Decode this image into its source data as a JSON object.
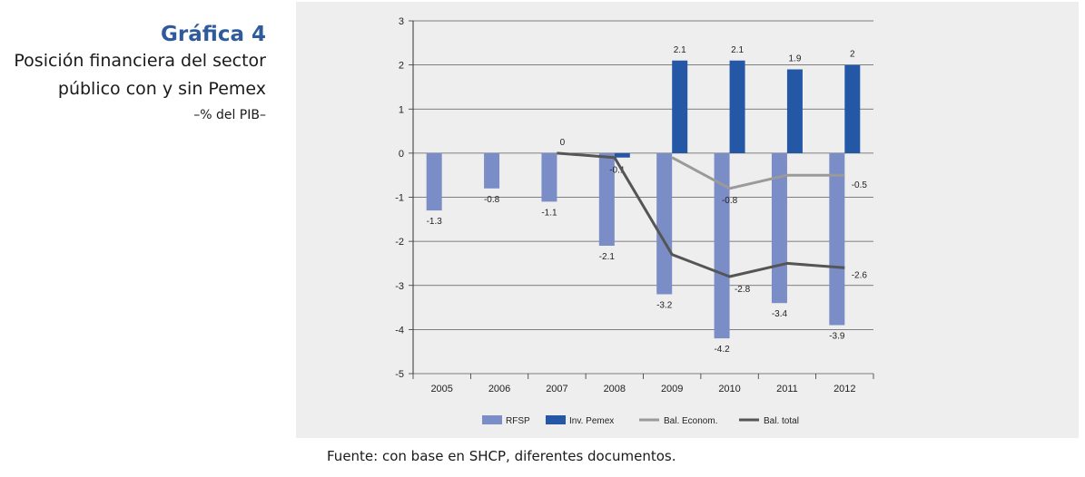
{
  "header": {
    "number": "Gráfica 4",
    "title_line1": "Posición financiera del sector",
    "title_line2": "público con y sin Pemex",
    "subtitle": "–% del PIB–"
  },
  "source": "Fuente: con base en SHCP, diferentes documentos.",
  "colors": {
    "rfsp": "#7b8dc7",
    "inv_pemex": "#2458a6",
    "bal_econom": "#9a9a9a",
    "bal_total": "#555555",
    "panel": "#eeeeee",
    "title": "#2f5b9c"
  },
  "chart_data": {
    "type": "bar",
    "title": "Posición financiera del sector público con y sin Pemex",
    "ylabel": "% del PIB",
    "xlabel": "",
    "ylim": [
      -5,
      3
    ],
    "yticks": [
      3,
      2,
      1,
      0,
      -1,
      -2,
      -3,
      -4,
      -5
    ],
    "grid": true,
    "legend_position": "bottom",
    "categories": [
      "2005",
      "2006",
      "2007",
      "2008",
      "2009",
      "2010",
      "2011",
      "2012"
    ],
    "series": [
      {
        "name": "RFSP",
        "kind": "bar",
        "values": [
          -1.3,
          -0.8,
          -1.1,
          -2.1,
          -3.2,
          -4.2,
          -3.4,
          -3.9
        ],
        "labels": [
          "-1.3",
          "-0.8",
          "-1.1",
          "-2.1",
          "-3.2",
          "-4.2",
          "-3.4",
          "-3.9"
        ]
      },
      {
        "name": "Inv. Pemex",
        "kind": "bar",
        "values": [
          null,
          null,
          null,
          -0.1,
          2.1,
          2.1,
          1.9,
          2.0
        ],
        "labels": [
          null,
          null,
          null,
          "-0.1",
          "2.1",
          "2.1",
          "1.9",
          "2"
        ]
      },
      {
        "name": "Bal. Econom.",
        "kind": "line",
        "values": [
          null,
          null,
          null,
          null,
          -0.1,
          -0.8,
          -0.5,
          -0.5
        ],
        "labels": [
          null,
          null,
          null,
          null,
          null,
          "-0.8",
          null,
          "-0.5"
        ]
      },
      {
        "name": "Bal. total",
        "kind": "line",
        "values": [
          null,
          null,
          0,
          -0.1,
          -2.3,
          -2.8,
          -2.5,
          -2.6
        ],
        "labels": [
          null,
          null,
          "0",
          null,
          null,
          "-2.8",
          null,
          "-2.6"
        ]
      }
    ]
  }
}
